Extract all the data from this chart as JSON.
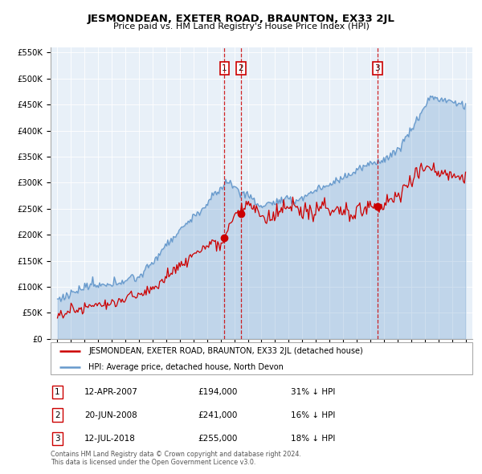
{
  "title": "JESMONDEAN, EXETER ROAD, BRAUNTON, EX33 2JL",
  "subtitle": "Price paid vs. HM Land Registry's House Price Index (HPI)",
  "legend_red": "JESMONDEAN, EXETER ROAD, BRAUNTON, EX33 2JL (detached house)",
  "legend_blue": "HPI: Average price, detached house, North Devon",
  "transactions": [
    {
      "num": 1,
      "date": "12-APR-2007",
      "price": 194000,
      "pct": "31%",
      "dir": "↓"
    },
    {
      "num": 2,
      "date": "20-JUN-2008",
      "price": 241000,
      "pct": "16%",
      "dir": "↓"
    },
    {
      "num": 3,
      "date": "12-JUL-2018",
      "price": 255000,
      "pct": "18%",
      "dir": "↓"
    }
  ],
  "transaction_dates": [
    2007.28,
    2008.47,
    2018.53
  ],
  "transaction_prices": [
    194000,
    241000,
    255000
  ],
  "footnote1": "Contains HM Land Registry data © Crown copyright and database right 2024.",
  "footnote2": "This data is licensed under the Open Government Licence v3.0.",
  "red_color": "#cc0000",
  "blue_color": "#6699cc",
  "blue_fill": "#ddeeff",
  "ylim": [
    0,
    560000
  ],
  "yticks": [
    0,
    50000,
    100000,
    150000,
    200000,
    250000,
    300000,
    350000,
    400000,
    450000,
    500000,
    550000
  ],
  "xlim": [
    1994.5,
    2025.5
  ],
  "xticks": [
    1995,
    1996,
    1997,
    1998,
    1999,
    2000,
    2001,
    2002,
    2003,
    2004,
    2005,
    2006,
    2007,
    2008,
    2009,
    2010,
    2011,
    2012,
    2013,
    2014,
    2015,
    2016,
    2017,
    2018,
    2019,
    2020,
    2021,
    2022,
    2023,
    2024,
    2025
  ]
}
